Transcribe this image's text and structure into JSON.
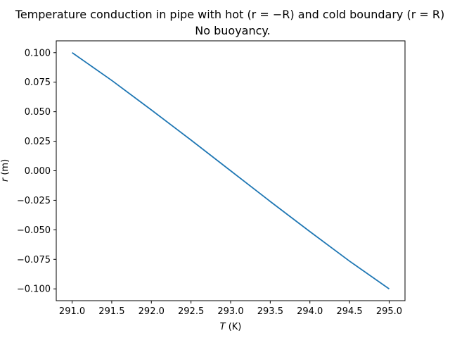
{
  "chart_data": {
    "type": "line",
    "title": "Temperature conduction in pipe with hot (r = −R) and cold boundary (r = R)",
    "subtitle": "No buoyancy.",
    "xlabel_italic": "T",
    "xlabel_rest": " (K)",
    "ylabel_italic": "r",
    "ylabel_rest": " (m)",
    "xlim": [
      290.8,
      295.2
    ],
    "ylim": [
      -0.11,
      0.11
    ],
    "xticks": [
      291.0,
      291.5,
      292.0,
      292.5,
      293.0,
      293.5,
      294.0,
      294.5,
      295.0
    ],
    "xtick_labels": [
      "291.0",
      "291.5",
      "292.0",
      "292.5",
      "293.0",
      "293.5",
      "294.0",
      "294.5",
      "295.0"
    ],
    "yticks": [
      0.1,
      0.075,
      0.05,
      0.025,
      0.0,
      -0.025,
      -0.05,
      -0.075,
      -0.1
    ],
    "ytick_labels": [
      "0.100",
      "0.075",
      "0.050",
      "0.025",
      "0.000",
      "−0.025",
      "−0.050",
      "−0.075",
      "−0.100"
    ],
    "grid": false,
    "series": [
      {
        "color": "#1f77b4",
        "x": [
          291.0,
          291.5,
          292.0,
          292.5,
          293.0,
          293.5,
          294.0,
          294.5,
          295.0
        ],
        "y": [
          0.1,
          0.0765,
          0.0515,
          0.026,
          0.0,
          -0.026,
          -0.0515,
          -0.0765,
          -0.1
        ]
      }
    ]
  }
}
